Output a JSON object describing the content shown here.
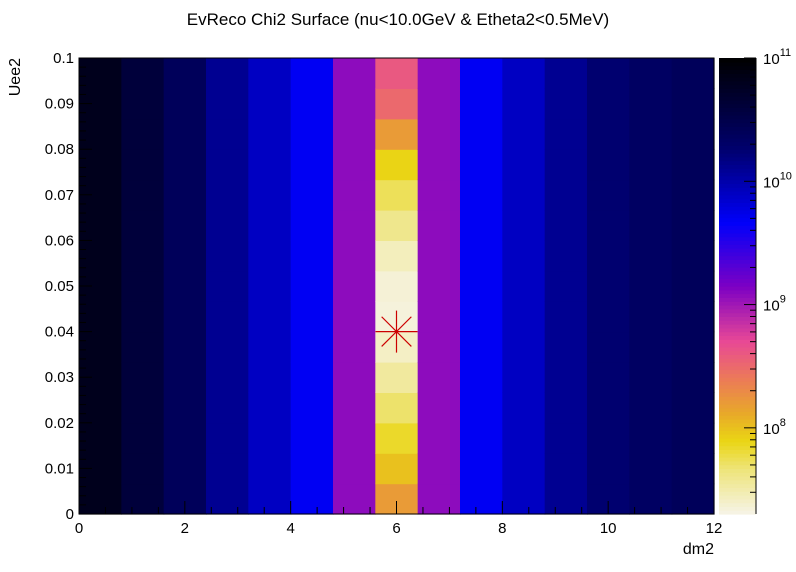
{
  "chart_data": {
    "type": "heatmap",
    "title": "EvReco Chi2 Surface (nu<10.0GeV & Etheta2<0.5MeV)",
    "xlabel": "dm2",
    "ylabel": "Uee2",
    "xlim": [
      0,
      12
    ],
    "ylim": [
      0,
      0.1
    ],
    "x_ticks": [
      0,
      2,
      4,
      6,
      8,
      10,
      12
    ],
    "y_ticks": [
      0,
      0.01,
      0.02,
      0.03,
      0.04,
      0.05,
      0.06,
      0.07,
      0.08,
      0.09,
      0.1
    ],
    "x_tick_labels": [
      "0",
      "2",
      "4",
      "6",
      "8",
      "10",
      "12"
    ],
    "y_tick_labels": [
      "0",
      "0.01",
      "0.02",
      "0.03",
      "0.04",
      "0.05",
      "0.06",
      "0.07",
      "0.08",
      "0.09",
      "0.1"
    ],
    "x_bins": 15,
    "y_bins": 15,
    "z_scale": "log",
    "zlim": [
      20000000,
      100000000000
    ],
    "colorbar_ticks": [
      {
        "value": 100000000,
        "label": "10",
        "exp": "8"
      },
      {
        "value": 1000000000,
        "label": "10",
        "exp": "9"
      },
      {
        "value": 10000000000,
        "label": "10",
        "exp": "10"
      },
      {
        "value": 100000000000,
        "label": "10",
        "exp": "11"
      }
    ],
    "column_values": [
      65000000000.0,
      40000000000.0,
      25000000000.0,
      13000000000.0,
      8000000000.0,
      5000000000.0,
      1200000000.0,
      null,
      1200000000.0,
      5000000000.0,
      8000000000.0,
      13000000000.0,
      18000000000.0,
      22000000000.0,
      25000000000.0
    ],
    "center_column_index": 7,
    "center_column_values": [
      160000000.0,
      100000000.0,
      70000000.0,
      50000000.0,
      35000000.0,
      26000000.0,
      22000000.0,
      23000000.0,
      28000000.0,
      40000000.0,
      55000000.0,
      80000000.0,
      160000000.0,
      320000000.0,
      400000000.0
    ],
    "best_fit_marker": {
      "x": 6.0,
      "y": 0.04,
      "color": "#cc0000"
    },
    "palette": "root-magenta-blue"
  }
}
